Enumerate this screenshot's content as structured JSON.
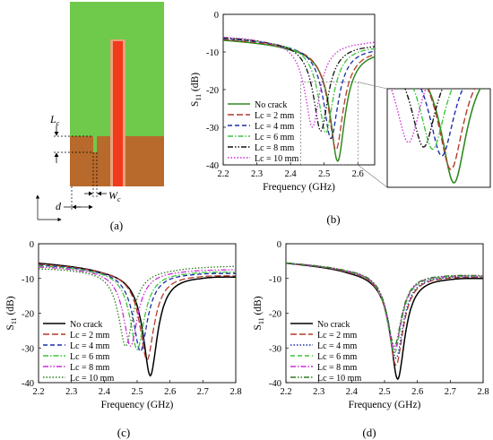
{
  "figure": {
    "panel_labels": [
      "(a)",
      "(b)",
      "(c)",
      "(d)"
    ]
  },
  "antenna": {
    "labels": {
      "lc": "L",
      "lc_sub": "c",
      "wc": "W",
      "wc_sub": "c",
      "d": "d"
    },
    "colors": {
      "substrate": "#6fc94a",
      "ground": "#b86a2c",
      "feed": "#f23a1c",
      "feed_edge": "#e8a27a"
    }
  },
  "chart_data": [
    {
      "panel": "(b)",
      "type": "line",
      "title": "",
      "xlabel": "Frequency (GHz)",
      "ylabel": "S",
      "ylabel_sub": "11",
      "ylabel_unit": " (dB)",
      "xlim": [
        2.2,
        2.65
      ],
      "ylim": [
        -40,
        0
      ],
      "xticks": [
        2.2,
        2.3,
        2.4,
        2.5,
        2.6
      ],
      "yticks": [
        0,
        -10,
        -20,
        -30,
        -40
      ],
      "legend_position": "lower-left",
      "series": [
        {
          "name": "No crack",
          "f0": 2.54,
          "depth": -39,
          "start": -6.5,
          "end": -9.2,
          "color": "#2e8b1e",
          "dash": "solid"
        },
        {
          "name": "Lc = 2 mm",
          "f0": 2.535,
          "depth": -36,
          "start": -6.3,
          "end": -9.0,
          "color": "#b23a2a",
          "dash": "long"
        },
        {
          "name": "Lc = 4 mm",
          "f0": 2.52,
          "depth": -33,
          "start": -6.1,
          "end": -8.6,
          "color": "#1a2ea8",
          "dash": "dash"
        },
        {
          "name": "Lc = 6 mm",
          "f0": 2.505,
          "depth": -31.5,
          "start": -5.9,
          "end": -8.2,
          "color": "#3ec43e",
          "dash": "dashdot"
        },
        {
          "name": "Lc = 8 mm",
          "f0": 2.49,
          "depth": -31,
          "start": -5.8,
          "end": -7.8,
          "color": "#111111",
          "dash": "dashdotdot"
        },
        {
          "name": "Lc = 10 mm",
          "f0": 2.465,
          "depth": -30,
          "start": -5.6,
          "end": -6.8,
          "color": "#cc2fd6",
          "dash": "dot"
        }
      ]
    },
    {
      "panel": "(c)",
      "type": "line",
      "title": "",
      "xlabel": "Frequency (GHz)",
      "ylabel": "S",
      "ylabel_sub": "11",
      "ylabel_unit": " (dB)",
      "xlim": [
        2.2,
        2.8
      ],
      "ylim": [
        -40,
        0
      ],
      "xticks": [
        2.2,
        2.3,
        2.4,
        2.5,
        2.6,
        2.7,
        2.8
      ],
      "yticks": [
        0,
        -10,
        -20,
        -30,
        -40
      ],
      "legend_position": "lower-left",
      "series": [
        {
          "name": "No crack",
          "f0": 2.54,
          "depth": -38,
          "start": -5.2,
          "end": -9.0,
          "color": "#000000",
          "dash": "solid"
        },
        {
          "name": "Lc = 2 mm",
          "f0": 2.53,
          "depth": -33.5,
          "start": -5.5,
          "end": -8.8,
          "color": "#b23a2a",
          "dash": "long"
        },
        {
          "name": "Lc = 4 mm",
          "f0": 2.51,
          "depth": -31,
          "start": -5.8,
          "end": -8.2,
          "color": "#1a2ea8",
          "dash": "dash"
        },
        {
          "name": "Lc = 6 mm",
          "f0": 2.5,
          "depth": -30.5,
          "start": -6.0,
          "end": -7.8,
          "color": "#3ec43e",
          "dash": "dashdot"
        },
        {
          "name": "Lc = 8 mm",
          "f0": 2.48,
          "depth": -29.5,
          "start": -6.3,
          "end": -7.2,
          "color": "#cc2fd6",
          "dash": "dashdotdot"
        },
        {
          "name": "Lc = 10 mm",
          "f0": 2.465,
          "depth": -29.5,
          "start": -6.8,
          "end": -6.2,
          "color": "#2e7d1e",
          "dash": "dot"
        }
      ]
    },
    {
      "panel": "(d)",
      "type": "line",
      "title": "",
      "xlabel": "Frequency (GHz)",
      "ylabel": "S",
      "ylabel_sub": "11",
      "ylabel_unit": " (dB)",
      "xlim": [
        2.2,
        2.8
      ],
      "ylim": [
        -40,
        0
      ],
      "xticks": [
        2.2,
        2.3,
        2.4,
        2.5,
        2.6,
        2.7,
        2.8
      ],
      "yticks": [
        0,
        -10,
        -20,
        -30,
        -40
      ],
      "legend_position": "lower-left",
      "series": [
        {
          "name": "No crack",
          "f0": 2.54,
          "depth": -39,
          "start": -5.2,
          "end": -9.4,
          "color": "#000000",
          "dash": "solid"
        },
        {
          "name": "Lc = 2 mm",
          "f0": 2.535,
          "depth": -35,
          "start": -5.2,
          "end": -9.2,
          "color": "#b23a2a",
          "dash": "long"
        },
        {
          "name": "Lc = 4 mm",
          "f0": 2.535,
          "depth": -33,
          "start": -5.2,
          "end": -9.1,
          "color": "#1a2ea8",
          "dash": "dot"
        },
        {
          "name": "Lc = 6 mm",
          "f0": 2.53,
          "depth": -31.5,
          "start": -5.2,
          "end": -9.0,
          "color": "#3ec43e",
          "dash": "dash"
        },
        {
          "name": "Lc = 8 mm",
          "f0": 2.53,
          "depth": -30.5,
          "start": -5.2,
          "end": -8.9,
          "color": "#cc2fd6",
          "dash": "dashdot"
        },
        {
          "name": "Lc = 10 mm",
          "f0": 2.53,
          "depth": -29.5,
          "start": -5.2,
          "end": -8.8,
          "color": "#2e7d1e",
          "dash": "dashdotdot"
        }
      ]
    }
  ]
}
